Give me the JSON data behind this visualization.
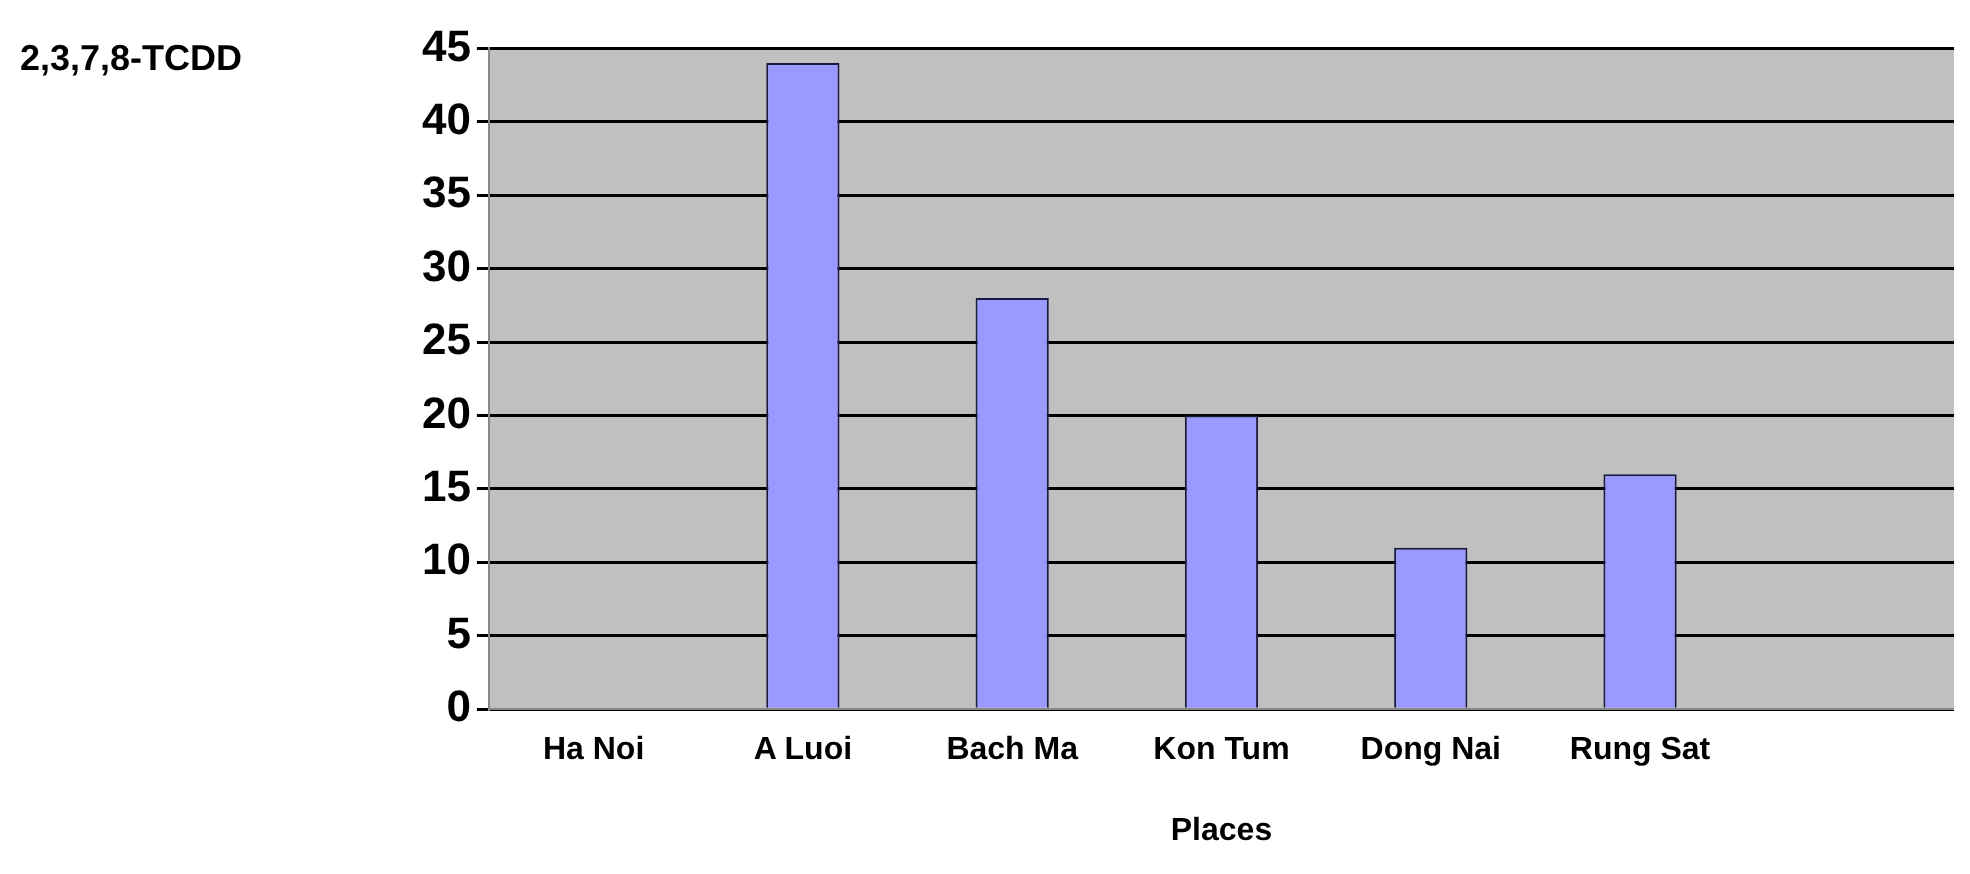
{
  "chart_data": {
    "type": "bar",
    "ylabel": "2,3,7,8-TCDD",
    "xlabel": "Places",
    "categories": [
      "Ha Noi",
      "A Luoi",
      "Bach Ma",
      "Kon Tum",
      "Dong Nai",
      "Rung Sat",
      null
    ],
    "values": [
      0,
      44,
      28,
      20,
      11,
      16,
      null
    ],
    "color": "#9999ff",
    "ylim": [
      0,
      45
    ],
    "yticks": [
      0,
      5,
      10,
      15,
      20,
      25,
      30,
      35,
      40,
      45
    ],
    "grid": "y",
    "legend": false
  }
}
